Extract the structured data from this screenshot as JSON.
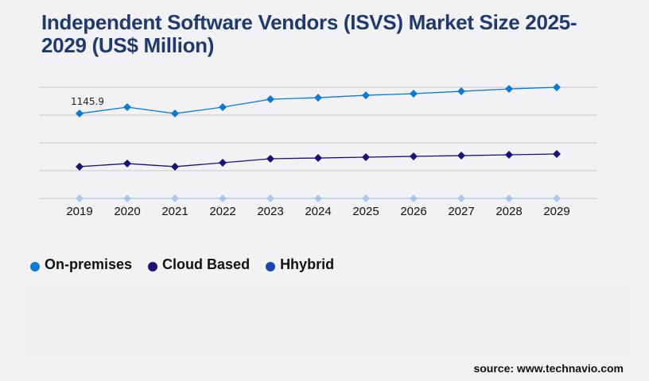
{
  "title": "Independent Software Vendors (ISVS) Market Size 2025-2029 (US$ Million)",
  "source": "source: www.technavio.com",
  "chart_data": {
    "type": "line",
    "title": "Independent Software Vendors (ISVS) Market Size 2025-2029 (US$ Million)",
    "categories": [
      "2019",
      "2020",
      "2021",
      "2022",
      "2023",
      "2024",
      "2025",
      "2026",
      "2027",
      "2028",
      "2029"
    ],
    "ylim": [
      0,
      1500
    ],
    "grid": true,
    "legend": "bottom-left",
    "series": [
      {
        "name": "On-premises",
        "color": "#0a7bd4",
        "values": [
          1145.9,
          1232,
          1146,
          1232,
          1339,
          1360,
          1392,
          1414,
          1446,
          1478,
          1500
        ]
      },
      {
        "name": "Cloud Based",
        "color": "#1a1277",
        "values": [
          429,
          471,
          429,
          482,
          536,
          546,
          557,
          568,
          578,
          589,
          600
        ]
      },
      {
        "name": "Hhybrid",
        "color": "#a9c8f5",
        "legend_color": "#1a46b0",
        "values": [
          0,
          0,
          0,
          0,
          0,
          0,
          0,
          0,
          0,
          0,
          0
        ]
      }
    ],
    "annotations": [
      {
        "category": "2019",
        "series": "On-premises",
        "text": "1145.9"
      }
    ]
  }
}
